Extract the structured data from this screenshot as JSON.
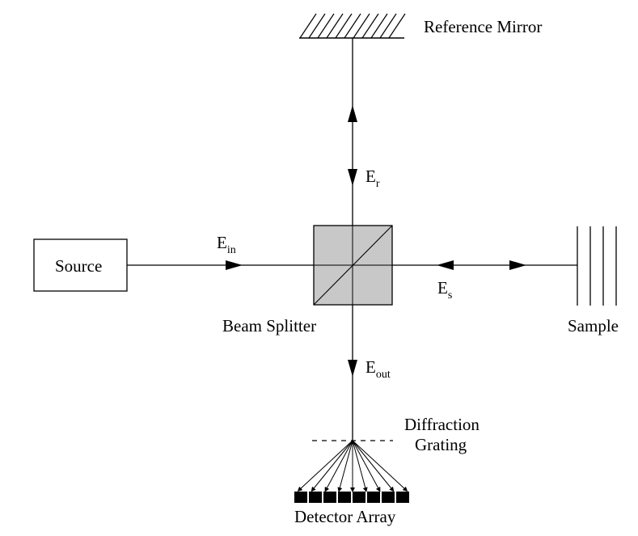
{
  "labels": {
    "reference_mirror": "Reference Mirror",
    "source": "Source",
    "beam_splitter": "Beam Splitter",
    "sample": "Sample",
    "diffraction_line1": "Diffraction",
    "diffraction_line2": "Grating",
    "detector_array": "Detector Array"
  },
  "fields": {
    "reference": {
      "symbol": "E",
      "subscript": "r"
    },
    "input": {
      "symbol": "E",
      "subscript": "in"
    },
    "sample": {
      "symbol": "E",
      "subscript": "s"
    },
    "output": {
      "symbol": "E",
      "subscript": "out"
    }
  },
  "detector_array": {
    "element_count": 8
  },
  "colors": {
    "stroke": "#000000",
    "splitter_fill": "#c8c8c8"
  }
}
